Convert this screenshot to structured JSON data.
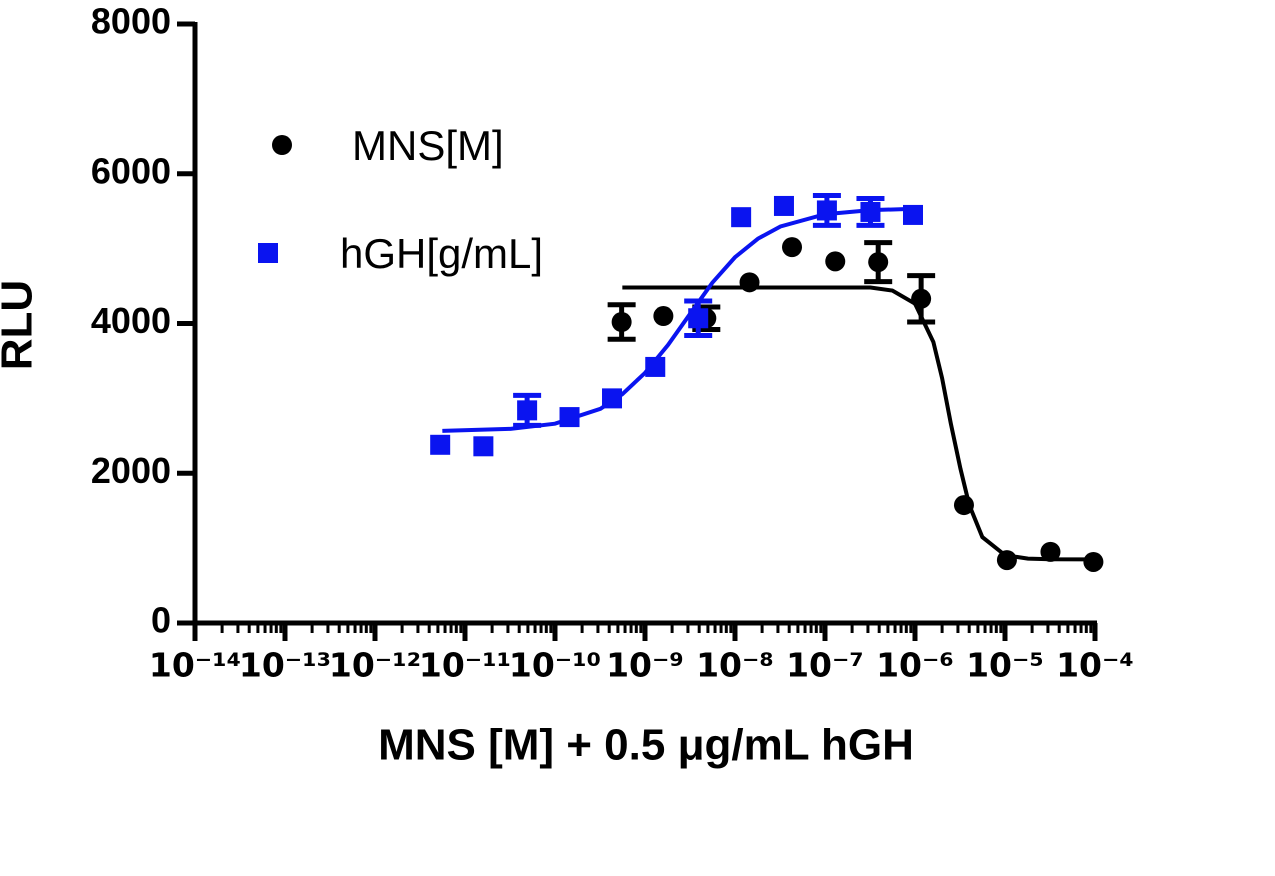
{
  "chart_data": {
    "type": "scatter",
    "x_label": "MNS [M] + 0.5 μg/mL hGH",
    "y_label": "RLU",
    "x_scale": "log",
    "xlim": [
      1e-14,
      0.0001
    ],
    "xticks": [
      {
        "value": 1e-14,
        "label": "10⁻¹⁴"
      },
      {
        "value": 1e-13,
        "label": "10⁻¹³"
      },
      {
        "value": 1e-12,
        "label": "10⁻¹²"
      },
      {
        "value": 1e-11,
        "label": "10⁻¹¹"
      },
      {
        "value": 1e-10,
        "label": "10⁻¹⁰"
      },
      {
        "value": 1e-09,
        "label": "10⁻⁹"
      },
      {
        "value": 1e-08,
        "label": "10⁻⁸"
      },
      {
        "value": 1e-07,
        "label": "10⁻⁷"
      },
      {
        "value": 1e-06,
        "label": "10⁻⁶"
      },
      {
        "value": 1e-05,
        "label": "10⁻⁵"
      },
      {
        "value": 0.0001,
        "label": "10⁻⁴"
      }
    ],
    "ylim": [
      0,
      8000
    ],
    "yticks": [
      0,
      2000,
      4000,
      6000,
      8000
    ],
    "legend": "top-left",
    "series": [
      {
        "name": "MNS[M]",
        "color": "#000000",
        "marker": "circle",
        "x": [
          5.5e-10,
          1.6e-09,
          4.8e-09,
          1.45e-08,
          4.3e-08,
          1.3e-07,
          3.9e-07,
          1.17e-06,
          3.5e-06,
          1.05e-05,
          3.2e-05,
          9.6e-05
        ],
        "values": [
          4020,
          4100,
          4070,
          4550,
          5020,
          4830,
          4820,
          4330,
          1575,
          840,
          950,
          815
        ],
        "errors": [
          230,
          null,
          150,
          null,
          null,
          null,
          260,
          310,
          null,
          null,
          null,
          null
        ],
        "fit": {
          "x": [
            5.6e-10,
            1e-08,
            3.2e-07,
            5.6e-07,
            1e-06,
            1.6e-06,
            2e-06,
            2.5e-06,
            3.2e-06,
            4e-06,
            5.6e-06,
            1e-05,
            1.8e-05,
            3.2e-05,
            0.0001
          ],
          "values": [
            4480,
            4480,
            4480,
            4440,
            4265,
            3752,
            3270,
            2665,
            2060,
            1579,
            1147,
            906,
            860,
            851,
            850
          ]
        }
      },
      {
        "name": "hGH[g/mL]",
        "color": "#0a14f0",
        "marker": "square",
        "x": [
          5.3e-12,
          1.6e-11,
          4.9e-11,
          1.45e-10,
          4.3e-10,
          1.3e-09,
          3.9e-09,
          1.17e-08,
          3.5e-08,
          1.05e-07,
          3.2e-07,
          9.5e-07
        ],
        "values": [
          2380,
          2360,
          2840,
          2750,
          3000,
          3420,
          4070,
          5420,
          5570,
          5510,
          5490,
          5450
        ],
        "errors": [
          null,
          null,
          200,
          null,
          null,
          null,
          230,
          null,
          null,
          200,
          180,
          null
        ],
        "fit": {
          "x": [
            5.6e-12,
            3.2e-11,
            1e-10,
            3.2e-10,
            5.6e-10,
            1e-09,
            1.8e-09,
            3.2e-09,
            5.6e-09,
            1e-08,
            1.8e-08,
            3.2e-08,
            1e-07,
            3.2e-07,
            1e-06
          ],
          "values": [
            2566,
            2593,
            2662,
            2861,
            3056,
            3340,
            3713,
            4136,
            4545,
            4885,
            5133,
            5296,
            5459,
            5514,
            5532
          ]
        }
      }
    ]
  }
}
